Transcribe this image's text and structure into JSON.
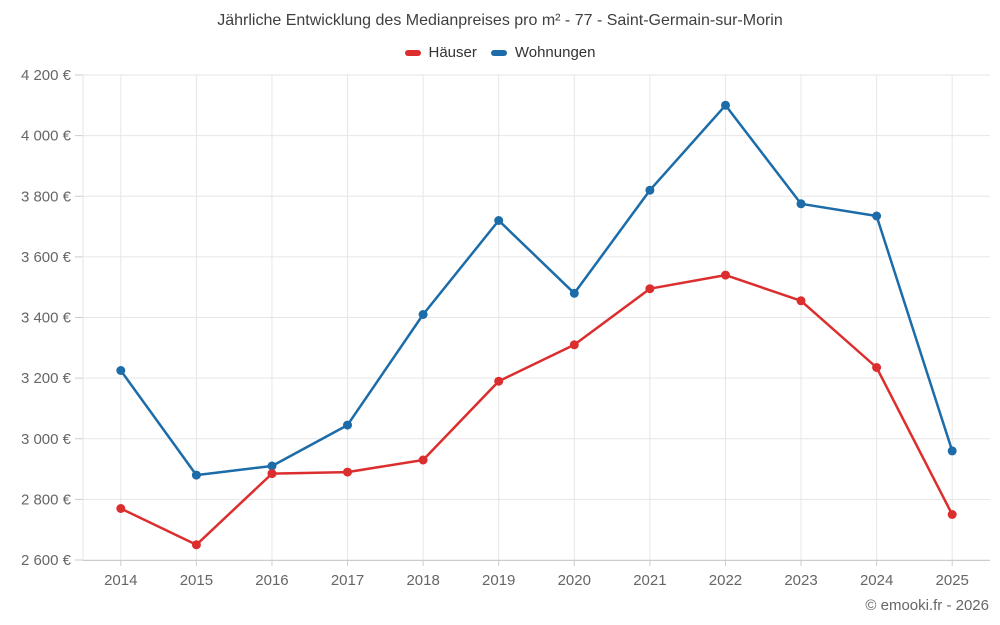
{
  "title": "Jährliche Entwicklung des Medianpreises pro m² - 77 - Saint-Germain-sur-Morin",
  "footer": "© emooki.fr - 2026",
  "colors": {
    "background": "#ffffff",
    "grid": "#e6e6e6",
    "axis": "#cccccc",
    "tick_label": "#666666",
    "title_text": "#3f3f3f",
    "legend_text": "#333333",
    "hauser_red": "#dc2e2e",
    "wohnungen_blue": "#1b6ca8"
  },
  "chart_data": {
    "type": "line",
    "title": "Jährliche Entwicklung des Medianpreises pro m² - 77 - Saint-Germain-sur-Morin",
    "categories": [
      "2014",
      "2015",
      "2016",
      "2017",
      "2018",
      "2019",
      "2020",
      "2021",
      "2022",
      "2023",
      "2024",
      "2025"
    ],
    "series": [
      {
        "name": "Häuser",
        "color": "#dc2e2e",
        "values": [
          2770,
          2650,
          2885,
          2890,
          2930,
          3190,
          3310,
          3495,
          3540,
          3455,
          3235,
          2750
        ]
      },
      {
        "name": "Wohnungen",
        "color": "#1b6ca8",
        "values": [
          3225,
          2880,
          2910,
          3045,
          3410,
          3720,
          3480,
          3820,
          4100,
          3775,
          3735,
          2960
        ]
      }
    ],
    "xlabel": "",
    "ylabel": "",
    "ylim": [
      2600,
      4200
    ],
    "ytick_step": 200,
    "ytick_suffix": " €",
    "grid": true,
    "legend_position": "top",
    "marker": "circle"
  }
}
